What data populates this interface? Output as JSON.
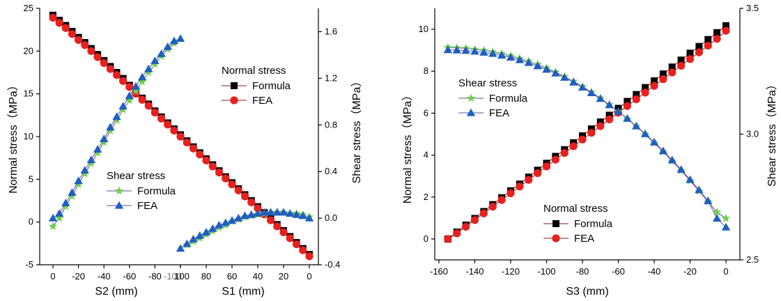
{
  "colors": {
    "formula_normal": "#000000",
    "fea_normal": "#e8201e",
    "formula_shear": "#6fcf4a",
    "fea_shear": "#1f5fc0",
    "normal_line": "#8a1c1c",
    "shear_line": "#5b4f9c"
  },
  "chart_data": [
    {
      "type": "line",
      "xlabel_left": "S2 (mm)",
      "xlabel_right": "S1 (mm)",
      "ylabel_left": "Normal stress（MPa）",
      "ylabel_right": "Shear stress（MPa）",
      "x_ticks_left": [
        "0",
        "-20",
        "-40",
        "-60",
        "-80",
        "-100"
      ],
      "x_ticks_right": [
        "100",
        "80",
        "60",
        "40",
        "20",
        "0"
      ],
      "y_ticks_left": [
        "-5",
        "0",
        "5",
        "10",
        "15",
        "20",
        "25"
      ],
      "y_ticks_right": [
        "-0.4",
        "0.0",
        "0.4",
        "0.8",
        "1.2",
        "1.6"
      ],
      "ylim_left": [
        -5,
        25
      ],
      "ylim_right": [
        -0.4,
        1.8
      ],
      "segments": [
        {
          "axis": "left",
          "xlim": [
            0,
            -100
          ],
          "series": [
            {
              "name": "Formula",
              "group": "Normal stress",
              "marker": "square",
              "x": [
                0,
                -5,
                -10,
                -15,
                -20,
                -25,
                -30,
                -35,
                -40,
                -45,
                -50,
                -55,
                -60,
                -65,
                -70,
                -75,
                -80,
                -85,
                -90,
                -95,
                -100
              ],
              "y": [
                24.2,
                23.6,
                23.0,
                22.3,
                21.6,
                21.0,
                20.3,
                19.6,
                18.9,
                18.2,
                17.5,
                16.8,
                16.0,
                15.3,
                14.5,
                13.8,
                13.0,
                12.3,
                11.6,
                10.9,
                10.2
              ]
            },
            {
              "name": "FEA",
              "group": "Normal stress",
              "marker": "circle",
              "x": [
                0,
                -5,
                -10,
                -15,
                -20,
                -25,
                -30,
                -35,
                -40,
                -45,
                -50,
                -55,
                -60,
                -65,
                -70,
                -75,
                -80,
                -85,
                -90,
                -95,
                -100
              ],
              "y": [
                23.9,
                23.3,
                22.7,
                22.0,
                21.3,
                20.7,
                20.0,
                19.3,
                18.6,
                17.9,
                17.2,
                16.5,
                15.8,
                15.0,
                14.3,
                13.6,
                12.8,
                12.1,
                11.4,
                10.7,
                10.0
              ]
            },
            {
              "name": "Formula",
              "group": "Shear stress",
              "marker": "star",
              "x": [
                0,
                -5,
                -10,
                -15,
                -20,
                -25,
                -30,
                -35,
                -40,
                -45,
                -50,
                -55,
                -60,
                -65,
                -70,
                -75,
                -80,
                -85,
                -90,
                -95
              ],
              "y": [
                -0.07,
                0.0,
                0.1,
                0.19,
                0.29,
                0.38,
                0.47,
                0.56,
                0.65,
                0.75,
                0.84,
                0.93,
                1.01,
                1.09,
                1.17,
                1.25,
                1.32,
                1.39,
                1.45,
                1.5
              ]
            },
            {
              "name": "FEA",
              "group": "Shear stress",
              "marker": "triangle",
              "x": [
                0,
                -5,
                -10,
                -15,
                -20,
                -25,
                -30,
                -35,
                -40,
                -45,
                -50,
                -55,
                -60,
                -65,
                -70,
                -75,
                -80,
                -85,
                -90,
                -95,
                -100
              ],
              "y": [
                0.0,
                0.04,
                0.13,
                0.22,
                0.32,
                0.41,
                0.5,
                0.59,
                0.68,
                0.78,
                0.87,
                0.96,
                1.05,
                1.13,
                1.21,
                1.28,
                1.35,
                1.41,
                1.47,
                1.52,
                1.54
              ]
            }
          ]
        },
        {
          "axis": "right",
          "xlim": [
            100,
            0
          ],
          "series": [
            {
              "name": "Formula",
              "group": "Normal stress",
              "marker": "square",
              "x": [
                100,
                95,
                90,
                85,
                80,
                75,
                70,
                65,
                60,
                55,
                50,
                45,
                40,
                35,
                30,
                25,
                20,
                15,
                10,
                5,
                0
              ],
              "y": [
                10.2,
                9.5,
                8.8,
                8.1,
                7.4,
                6.7,
                6.0,
                5.3,
                4.6,
                3.9,
                3.2,
                2.5,
                1.8,
                1.1,
                0.4,
                -0.3,
                -1.0,
                -1.7,
                -2.4,
                -3.1,
                -3.8
              ]
            },
            {
              "name": "FEA",
              "group": "Normal stress",
              "marker": "circle",
              "x": [
                100,
                95,
                90,
                85,
                80,
                75,
                70,
                65,
                60,
                55,
                50,
                45,
                40,
                35,
                30,
                25,
                20,
                15,
                10,
                5,
                0
              ],
              "y": [
                10.0,
                9.3,
                8.6,
                7.9,
                7.2,
                6.5,
                5.8,
                5.1,
                4.4,
                3.7,
                3.0,
                2.3,
                1.6,
                0.9,
                0.2,
                -0.5,
                -1.2,
                -1.9,
                -2.6,
                -3.3,
                -4.0
              ]
            },
            {
              "name": "Formula",
              "group": "Shear stress",
              "marker": "star",
              "x": [
                95,
                90,
                85,
                80,
                75,
                70,
                65,
                60,
                55,
                50,
                45,
                40,
                35,
                30,
                25,
                20,
                15,
                10,
                5,
                0
              ],
              "y": [
                -0.23,
                -0.2,
                -0.17,
                -0.14,
                -0.11,
                -0.08,
                -0.06,
                -0.03,
                -0.01,
                0.01,
                0.02,
                0.03,
                0.04,
                0.05,
                0.05,
                0.05,
                0.04,
                0.04,
                0.03,
                0.01
              ]
            },
            {
              "name": "FEA",
              "group": "Shear stress",
              "marker": "triangle",
              "x": [
                100,
                95,
                90,
                85,
                80,
                75,
                70,
                65,
                60,
                55,
                50,
                45,
                40,
                35,
                30,
                25,
                20,
                15,
                10,
                5,
                0
              ],
              "y": [
                -0.26,
                -0.22,
                -0.18,
                -0.15,
                -0.12,
                -0.09,
                -0.06,
                -0.04,
                -0.02,
                0.0,
                0.02,
                0.03,
                0.04,
                0.05,
                0.05,
                0.05,
                0.05,
                0.04,
                0.03,
                0.02,
                0.0
              ]
            }
          ]
        }
      ],
      "legends": [
        {
          "title": "Normal stress",
          "placement": "top-right",
          "items": [
            {
              "name": "Formula",
              "marker": "square"
            },
            {
              "name": "FEA",
              "marker": "circle"
            }
          ]
        },
        {
          "title": "Shear stress",
          "placement": "bottom-left",
          "items": [
            {
              "name": "Formula",
              "marker": "star"
            },
            {
              "name": "FEA",
              "marker": "triangle"
            }
          ]
        }
      ]
    },
    {
      "type": "line",
      "xlabel": "S3 (mm)",
      "ylabel_left": "Normal stress（MPa）",
      "ylabel_right": "Shear stress（MPa）",
      "x_ticks": [
        "-160",
        "-140",
        "-120",
        "-100",
        "-80",
        "-60",
        "-40",
        "-20",
        "0"
      ],
      "y_ticks_left": [
        "0",
        "2",
        "4",
        "6",
        "8",
        "10"
      ],
      "y_ticks_right": [
        "2.5",
        "3.0",
        "3.5"
      ],
      "xlim": [
        -165,
        5
      ],
      "ylim_left": [
        -1,
        11
      ],
      "ylim_right": [
        2.5,
        3.5
      ],
      "series": [
        {
          "name": "Formula",
          "group": "Normal stress",
          "marker": "square",
          "axis": "left",
          "x": [
            -155,
            -150,
            -145,
            -140,
            -135,
            -130,
            -125,
            -120,
            -115,
            -110,
            -105,
            -100,
            -95,
            -90,
            -85,
            -80,
            -75,
            -70,
            -65,
            -60,
            -55,
            -50,
            -45,
            -40,
            -35,
            -30,
            -25,
            -20,
            -15,
            -10,
            -5,
            0
          ],
          "y": [
            0.0,
            0.33,
            0.66,
            0.98,
            1.31,
            1.64,
            1.97,
            2.3,
            2.62,
            2.95,
            3.28,
            3.61,
            3.94,
            4.26,
            4.59,
            4.92,
            5.25,
            5.58,
            5.9,
            6.23,
            6.56,
            6.89,
            7.22,
            7.54,
            7.87,
            8.2,
            8.53,
            8.86,
            9.18,
            9.51,
            9.84,
            10.17
          ]
        },
        {
          "name": "FEA",
          "group": "Normal stress",
          "marker": "circle",
          "axis": "left",
          "x": [
            -155,
            -150,
            -145,
            -140,
            -135,
            -130,
            -125,
            -120,
            -115,
            -110,
            -105,
            -100,
            -95,
            -90,
            -85,
            -80,
            -75,
            -70,
            -65,
            -60,
            -55,
            -50,
            -45,
            -40,
            -35,
            -30,
            -25,
            -20,
            -15,
            -10,
            -5,
            0
          ],
          "y": [
            0.0,
            0.27,
            0.58,
            0.9,
            1.22,
            1.54,
            1.86,
            2.18,
            2.5,
            2.82,
            3.14,
            3.46,
            3.78,
            4.1,
            4.42,
            4.74,
            5.06,
            5.38,
            5.7,
            6.02,
            6.34,
            6.66,
            6.98,
            7.3,
            7.62,
            7.94,
            8.26,
            8.58,
            8.9,
            9.22,
            9.54,
            9.93
          ]
        },
        {
          "name": "Formula",
          "group": "Shear stress",
          "marker": "star",
          "axis": "right",
          "x": [
            -155,
            -150,
            -145,
            -140,
            -135,
            -130,
            -125,
            -120,
            -115,
            -110,
            -105,
            -100,
            -95,
            -90,
            -85,
            -80,
            -75,
            -70,
            -65,
            -60,
            -55,
            -50,
            -45,
            -40,
            -35,
            -30,
            -25,
            -20,
            -15,
            -10,
            -5,
            0
          ],
          "y": [
            3.345,
            3.343,
            3.341,
            3.337,
            3.333,
            3.327,
            3.32,
            3.311,
            3.301,
            3.29,
            3.277,
            3.263,
            3.247,
            3.229,
            3.21,
            3.189,
            3.167,
            3.143,
            3.117,
            3.09,
            3.061,
            3.031,
            2.999,
            2.965,
            2.93,
            2.893,
            2.855,
            2.815,
            2.774,
            2.731,
            2.69,
            2.665
          ]
        },
        {
          "name": "FEA",
          "group": "Shear stress",
          "marker": "triangle",
          "axis": "right",
          "x": [
            -155,
            -150,
            -145,
            -140,
            -135,
            -130,
            -125,
            -120,
            -115,
            -110,
            -105,
            -100,
            -95,
            -90,
            -85,
            -80,
            -75,
            -70,
            -65,
            -60,
            -55,
            -50,
            -45,
            -40,
            -35,
            -30,
            -25,
            -20,
            -15,
            -10,
            -5,
            0
          ],
          "y": [
            3.335,
            3.334,
            3.332,
            3.329,
            3.325,
            3.32,
            3.313,
            3.305,
            3.295,
            3.284,
            3.271,
            3.257,
            3.242,
            3.225,
            3.206,
            3.186,
            3.164,
            3.141,
            3.116,
            3.09,
            3.062,
            3.032,
            3.001,
            2.968,
            2.933,
            2.897,
            2.859,
            2.819,
            2.778,
            2.735,
            2.665,
            2.63
          ]
        }
      ],
      "legends": [
        {
          "title": "Shear stress",
          "placement": "top-left",
          "items": [
            {
              "name": "Formula",
              "marker": "star"
            },
            {
              "name": "FEA",
              "marker": "triangle"
            }
          ]
        },
        {
          "title": "Normal stress",
          "placement": "bottom-right",
          "items": [
            {
              "name": "Formula",
              "marker": "square"
            },
            {
              "name": "FEA",
              "marker": "circle"
            }
          ]
        }
      ]
    }
  ]
}
